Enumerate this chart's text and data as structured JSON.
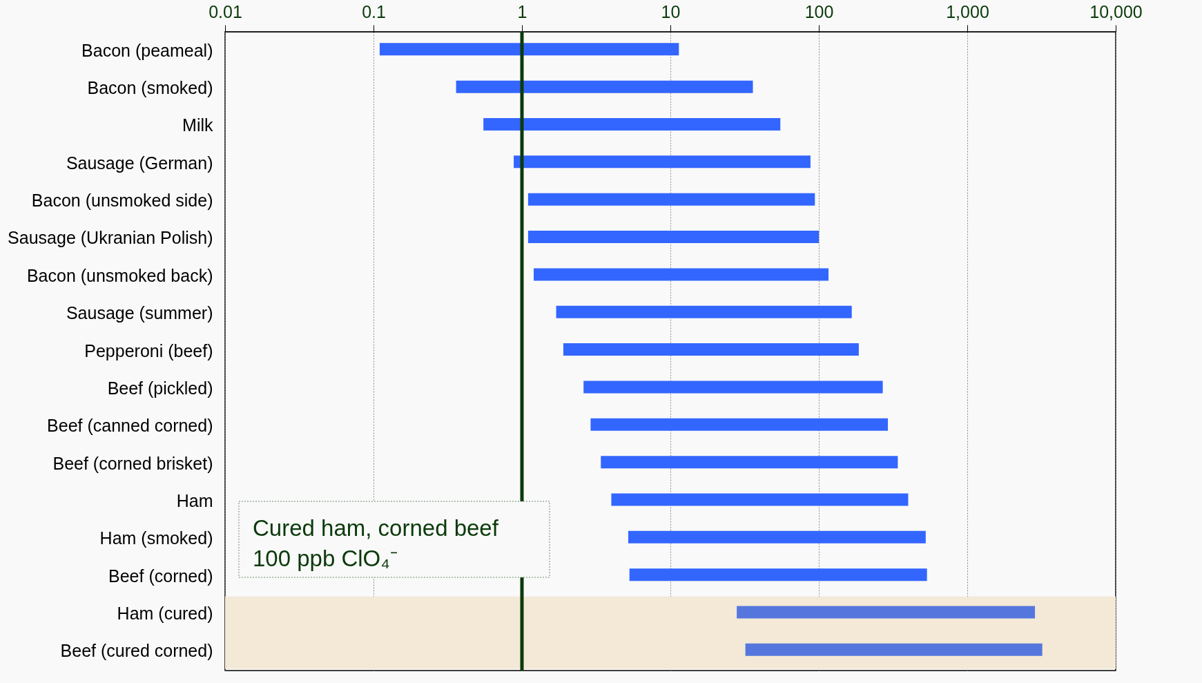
{
  "chart_data": {
    "type": "bar",
    "orientation": "horizontal",
    "log": "x",
    "categories": [
      "Bacon (peameal)",
      "Bacon (smoked)",
      "Milk",
      "Sausage (German)",
      "Bacon (unsmoked side)",
      "Sausage (Ukranian Polish)",
      "Bacon (unsmoked back)",
      "Sausage (summer)",
      "Pepperoni (beef)",
      "Beef (pickled)",
      "Beef (canned corned)",
      "Beef (corned brisket)",
      "Ham",
      "Ham (smoked)",
      "Beef (corned)",
      "Ham (cured)",
      "Beef (cured corned)"
    ],
    "base": [
      0.11,
      0.36,
      0.55,
      0.88,
      1.1,
      1.1,
      1.2,
      1.7,
      1.9,
      2.6,
      2.9,
      3.4,
      4,
      5.2,
      5.3,
      28,
      32
    ],
    "values": [
      11.3,
      35.6,
      54.5,
      87,
      93,
      99,
      115,
      165,
      184,
      267,
      289,
      337,
      396,
      520,
      530,
      2830,
      3170
    ],
    "colors": [
      "#3366ff",
      "#3366ff",
      "#3366ff",
      "#3366ff",
      "#3366ff",
      "#3366ff",
      "#3366ff",
      "#3366ff",
      "#3366ff",
      "#3366ff",
      "#3366ff",
      "#3366ff",
      "#3366ff",
      "#3366ff",
      "#3366ff",
      "#5577dd",
      "#5577dd"
    ],
    "xlim": [
      0.01,
      10000
    ],
    "xticks": [
      0.01,
      0.1,
      1,
      10,
      100,
      {
        "value": 1000,
        "label": "1,000"
      },
      {
        "value": 10000,
        "label": "10,000"
      }
    ],
    "grid": "x",
    "ref_lines": [
      {
        "axis": "x",
        "value": 1,
        "color": "#0a3a0a"
      }
    ],
    "bands": [
      {
        "axis": "y",
        "from": "Ham (cured)",
        "to": "Beef (cured corned)",
        "color": "#f3e9d6"
      }
    ],
    "annotations": [
      "Cured ham, corned beef",
      "100 ppb ClO₄⁻"
    ]
  }
}
